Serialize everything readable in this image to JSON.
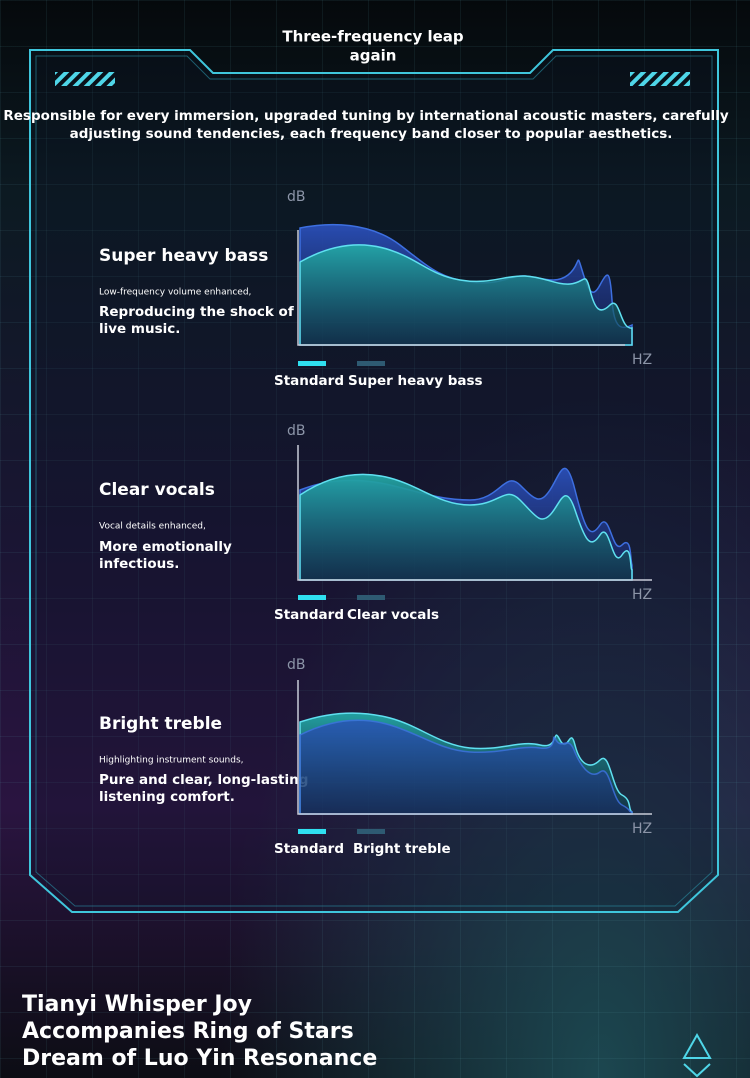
{
  "header": {
    "title": [
      "Three-frequency leap",
      "again"
    ]
  },
  "intro": [
    "Responsible for every immersion, upgraded tuning by international acoustic masters, carefully",
    "adjusting sound tendencies, each frequency band closer to popular aesthetics."
  ],
  "sections": [
    {
      "title": "Super heavy bass",
      "note": "Low-frequency volume enhanced,",
      "description": [
        "Reproducing the shock of",
        "live music."
      ],
      "y_axis": "dB",
      "x_axis": "HZ",
      "legend": [
        "Standard",
        "Super heavy bass"
      ]
    },
    {
      "title": "Clear vocals",
      "note": "Vocal details enhanced,",
      "description": [
        "More emotionally",
        "infectious."
      ],
      "y_axis": "dB",
      "x_axis": "HZ",
      "legend": [
        "Standard",
        "Clear vocals"
      ]
    },
    {
      "title": "Bright treble",
      "note": "Highlighting instrument sounds,",
      "description": [
        "Pure and clear, long-lasting",
        "listening comfort."
      ],
      "y_axis": "dB",
      "x_axis": "HZ",
      "legend": [
        "Standard",
        "Bright treble"
      ]
    }
  ],
  "footer": [
    "Tianyi Whisper Joy",
    "Accompanies Ring of Stars",
    "Dream of Luo Yin Resonance"
  ]
}
